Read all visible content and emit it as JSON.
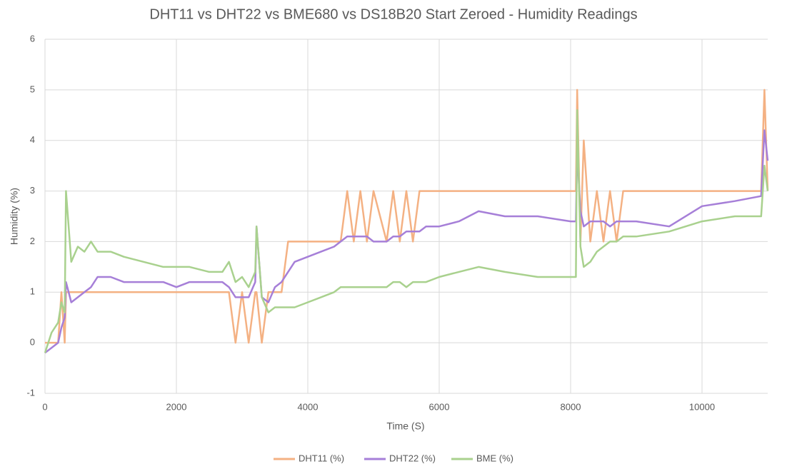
{
  "chart_data": {
    "type": "line",
    "title": "DHT11 vs DHT22 vs BME680 vs DS18B20 Start Zeroed - Humidity Readings",
    "x_label": "Time (S)",
    "y_label": "Humidity (%)",
    "xlim": [
      0,
      11000
    ],
    "xticks": [
      0,
      2000,
      4000,
      6000,
      8000,
      10000
    ],
    "ylim": [
      -1,
      6
    ],
    "yticks": [
      -1,
      0,
      1,
      2,
      3,
      4,
      5,
      6
    ],
    "grid": true,
    "legend": "bottom",
    "x": [
      0,
      100,
      200,
      250,
      300,
      320,
      400,
      500,
      600,
      700,
      800,
      1000,
      1200,
      1500,
      1800,
      2000,
      2200,
      2500,
      2700,
      2800,
      2900,
      3000,
      3100,
      3200,
      3220,
      3300,
      3400,
      3500,
      3600,
      3700,
      3800,
      4000,
      4200,
      4400,
      4500,
      4600,
      4700,
      4800,
      4900,
      5000,
      5200,
      5300,
      5400,
      5500,
      5600,
      5700,
      5800,
      6000,
      6300,
      6600,
      7000,
      7500,
      8000,
      8080,
      8100,
      8150,
      8200,
      8300,
      8400,
      8500,
      8600,
      8700,
      8800,
      9000,
      9500,
      10000,
      10500,
      10900,
      10950,
      11000
    ],
    "series": [
      {
        "name": "DHT11 (%)",
        "color": "#f4b183",
        "values": [
          0,
          0,
          0,
          1,
          0,
          1,
          1,
          1,
          1,
          1,
          1,
          1,
          1,
          1,
          1,
          1,
          1,
          1,
          1,
          1,
          0,
          1,
          0,
          1,
          1,
          0,
          1,
          1,
          1,
          2,
          2,
          2,
          2,
          2,
          2,
          3,
          2,
          3,
          2,
          3,
          2,
          3,
          2,
          3,
          2,
          3,
          3,
          3,
          3,
          3,
          3,
          3,
          3,
          3,
          5,
          2,
          4,
          2,
          3,
          2,
          3,
          2,
          3,
          3,
          3,
          3,
          3,
          3,
          5,
          3
        ]
      },
      {
        "name": "DHT22 (%)",
        "color": "#a67fd8",
        "values": [
          -0.2,
          -0.1,
          0,
          0.3,
          0.5,
          1.2,
          0.8,
          0.9,
          1,
          1.1,
          1.3,
          1.3,
          1.2,
          1.2,
          1.2,
          1.1,
          1.2,
          1.2,
          1.2,
          1.1,
          0.9,
          0.9,
          0.9,
          1.2,
          2.3,
          0.9,
          0.8,
          1.1,
          1.2,
          1.4,
          1.6,
          1.7,
          1.8,
          1.9,
          2,
          2.1,
          2.1,
          2.1,
          2.1,
          2,
          2,
          2.1,
          2.1,
          2.2,
          2.2,
          2.2,
          2.3,
          2.3,
          2.4,
          2.6,
          2.5,
          2.5,
          2.4,
          2.4,
          3.8,
          2.6,
          2.3,
          2.4,
          2.4,
          2.4,
          2.3,
          2.4,
          2.4,
          2.4,
          2.3,
          2.7,
          2.8,
          2.9,
          4.2,
          3.6
        ]
      },
      {
        "name": "BME (%)",
        "color": "#a9d18e",
        "values": [
          -0.2,
          0.2,
          0.4,
          0.8,
          0.6,
          3,
          1.6,
          1.9,
          1.8,
          2,
          1.8,
          1.8,
          1.7,
          1.6,
          1.5,
          1.5,
          1.5,
          1.4,
          1.4,
          1.6,
          1.2,
          1.3,
          1.1,
          1.4,
          2.3,
          0.9,
          0.6,
          0.7,
          0.7,
          0.7,
          0.7,
          0.8,
          0.9,
          1,
          1.1,
          1.1,
          1.1,
          1.1,
          1.1,
          1.1,
          1.1,
          1.2,
          1.2,
          1.1,
          1.2,
          1.2,
          1.2,
          1.3,
          1.4,
          1.5,
          1.4,
          1.3,
          1.3,
          1.3,
          4.6,
          1.9,
          1.5,
          1.6,
          1.8,
          1.9,
          2,
          2,
          2.1,
          2.1,
          2.2,
          2.4,
          2.5,
          2.5,
          3.5,
          3
        ]
      }
    ]
  }
}
